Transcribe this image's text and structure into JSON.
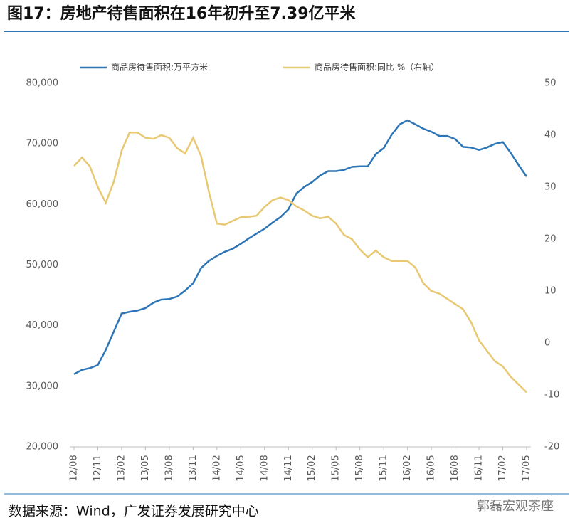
{
  "chart_data": {
    "type": "line",
    "title": "图17：房地产待售面积在16年初升至7.39亿平米",
    "source": "数据来源：Wind，广发证券发展研究中心",
    "watermark": "郭磊宏观茶座",
    "categories": [
      "12/08",
      null,
      null,
      "12/11",
      null,
      null,
      "13/02",
      null,
      null,
      "13/05",
      null,
      null,
      "13/08",
      null,
      null,
      "13/11",
      null,
      null,
      "14/02",
      null,
      null,
      "14/05",
      null,
      null,
      "14/08",
      null,
      null,
      "14/11",
      null,
      null,
      "15/02",
      null,
      null,
      "15/05",
      null,
      null,
      "15/08",
      null,
      null,
      "15/11",
      null,
      null,
      "16/02",
      null,
      null,
      "16/05",
      null,
      null,
      "16/08",
      null,
      null,
      "16/11",
      null,
      null,
      "17/02",
      null,
      null,
      "17/05"
    ],
    "series": [
      {
        "name": "商品房待售面积:万平方米",
        "color": "#2e75b6",
        "values": [
          32000,
          32700,
          33000,
          33500,
          36000,
          39000,
          42000,
          42300,
          42500,
          42900,
          43800,
          44300,
          44400,
          44800,
          45800,
          47000,
          49500,
          50700,
          51500,
          52200,
          52700,
          53500,
          54400,
          55200,
          56000,
          57000,
          57900,
          59200,
          61800,
          62900,
          63700,
          64800,
          65500,
          65500,
          65700,
          66200,
          66300,
          66300,
          68300,
          69300,
          71500,
          73200,
          73900,
          73200,
          72500,
          72000,
          71300,
          71300,
          70800,
          69500,
          69400,
          69000,
          69400,
          70000,
          70300,
          68500,
          66500,
          64600
        ]
      },
      {
        "name": "商品房待售面积:同比 %（右轴）",
        "color": "#e8c872",
        "axis": "y2",
        "values": [
          34.1,
          35.7,
          34,
          30,
          27,
          31,
          37,
          40.5,
          40.5,
          39.5,
          39.3,
          40,
          39.5,
          37.5,
          36.5,
          39.5,
          36,
          29,
          23,
          22.8,
          23.5,
          24.2,
          24.3,
          24.5,
          26.2,
          27.5,
          28,
          27.5,
          26.3,
          25.5,
          24.5,
          24,
          24.3,
          23,
          20.8,
          20,
          18,
          16.5,
          17.8,
          16.5,
          15.8,
          15.8,
          15.8,
          14.5,
          11.5,
          10,
          9.5,
          8.5,
          7.5,
          6.5,
          4,
          0.5,
          -1.5,
          -3.5,
          -4.5,
          -6.5,
          -8,
          -9.5
        ]
      }
    ],
    "ylim": [
      20000,
      80000
    ],
    "yticks": [
      {
        "value": 20000,
        "label": "20,000"
      },
      {
        "value": 30000,
        "label": "30,000"
      },
      {
        "value": 40000,
        "label": "40,000"
      },
      {
        "value": 50000,
        "label": "50,000"
      },
      {
        "value": 60000,
        "label": "60,000"
      },
      {
        "value": 70000,
        "label": "70,000"
      },
      {
        "value": 80000,
        "label": "80,000"
      }
    ],
    "y2lim": [
      -20,
      50
    ],
    "y2ticks": [
      -20,
      -10,
      0,
      10,
      20,
      30,
      40,
      50
    ]
  }
}
